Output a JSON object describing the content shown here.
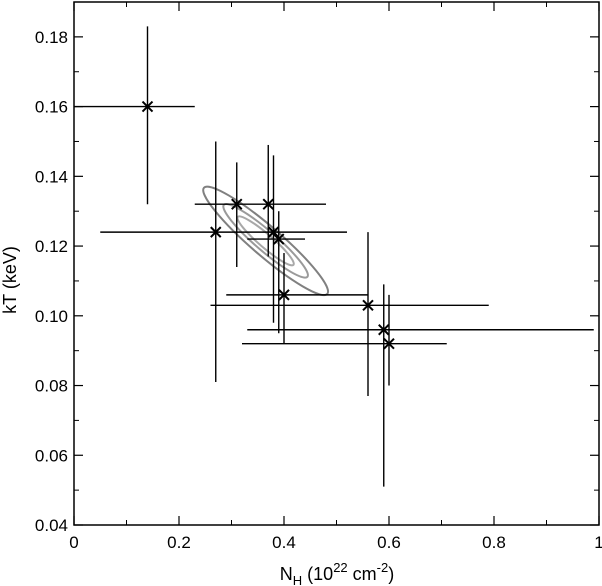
{
  "chart_data": {
    "type": "scatter",
    "title": "",
    "xlabel": {
      "base": "N",
      "sub": "H",
      "mid": " (10",
      "sup1": "22",
      "unit": " cm",
      "sup2": "-2",
      "close": ")"
    },
    "ylabel": "kT (keV)",
    "xlim": [
      0,
      1
    ],
    "ylim": [
      0.04,
      0.19
    ],
    "xticks": [
      0,
      0.2,
      0.4,
      0.6,
      0.8,
      1
    ],
    "xtick_labels": [
      "0",
      "0.2",
      "0.4",
      "0.6",
      "0.8",
      "1"
    ],
    "yticks": [
      0.04,
      0.06,
      0.08,
      0.1,
      0.12,
      0.14,
      0.16,
      0.18
    ],
    "ytick_labels": [
      "0.04",
      "0.06",
      "0.08",
      "0.10",
      "0.12",
      "0.14",
      "0.16",
      "0.18"
    ],
    "grid": false,
    "points": [
      {
        "x": 0.14,
        "y": 0.16,
        "xerr": [
          0.0,
          0.23
        ],
        "yerr": [
          0.132,
          0.183
        ]
      },
      {
        "x": 0.27,
        "y": 0.124,
        "xerr": [
          0.05,
          0.52
        ],
        "yerr": [
          0.081,
          0.15
        ]
      },
      {
        "x": 0.31,
        "y": 0.132,
        "xerr": [
          0.23,
          0.48
        ],
        "yerr": [
          0.114,
          0.144
        ]
      },
      {
        "x": 0.37,
        "y": 0.132,
        "xerr": [
          0.37,
          0.37
        ],
        "yerr": [
          0.117,
          0.149
        ]
      },
      {
        "x": 0.38,
        "y": 0.124,
        "xerr": [
          0.38,
          0.38
        ],
        "yerr": [
          0.098,
          0.146
        ]
      },
      {
        "x": 0.39,
        "y": 0.122,
        "xerr": [
          0.33,
          0.44
        ],
        "yerr": [
          0.095,
          0.13
        ]
      },
      {
        "x": 0.4,
        "y": 0.106,
        "xerr": [
          0.29,
          0.56
        ],
        "yerr": [
          0.092,
          0.118
        ]
      },
      {
        "x": 0.56,
        "y": 0.103,
        "xerr": [
          0.26,
          0.79
        ],
        "yerr": [
          0.077,
          0.124
        ]
      },
      {
        "x": 0.59,
        "y": 0.096,
        "xerr": [
          0.33,
          0.99
        ],
        "yerr": [
          0.051,
          0.109
        ]
      },
      {
        "x": 0.6,
        "y": 0.092,
        "xerr": [
          0.32,
          0.71
        ],
        "yerr": [
          0.08,
          0.106
        ]
      }
    ],
    "contours": [
      {
        "center": [
          0.365,
          0.1215
        ],
        "a": 0.155,
        "b": 0.0042,
        "color": "#808080"
      },
      {
        "center": [
          0.365,
          0.1215
        ],
        "a": 0.105,
        "b": 0.0029,
        "color": "#9a9a9a"
      },
      {
        "center": [
          0.365,
          0.1215
        ],
        "a": 0.07,
        "b": 0.0019,
        "color": "#a8a8a8"
      }
    ],
    "marker": "x",
    "color": "#000000"
  }
}
